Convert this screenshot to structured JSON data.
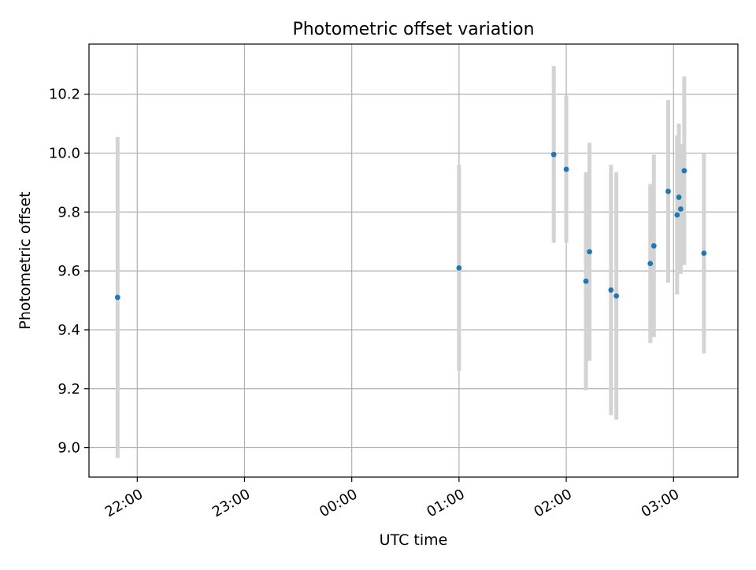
{
  "chart_data": {
    "type": "scatter",
    "title": "Photometric offset variation",
    "xlabel": "UTC time",
    "ylabel": "Photometric offset",
    "x_unit": "UTC time (HH:MM, across midnight)",
    "xlim": [
      "21:33",
      "03:36"
    ],
    "ylim": [
      8.9,
      10.37
    ],
    "x_ticks": [
      "22:00",
      "23:00",
      "00:00",
      "01:00",
      "02:00",
      "03:00"
    ],
    "y_ticks": [
      "9.0",
      "9.2",
      "9.4",
      "9.6",
      "9.8",
      "10.0",
      "10.2"
    ],
    "grid": true,
    "legend": "none",
    "colors": {
      "marker": "#1f77b4",
      "errorbar": "#d3d3d3",
      "grid": "#b0b0b0",
      "axes": "#000000"
    },
    "points": [
      {
        "x": "21:49",
        "y": 9.51,
        "err": 0.545
      },
      {
        "x": "01:00",
        "y": 9.61,
        "err": 0.35
      },
      {
        "x": "01:53",
        "y": 9.995,
        "err": 0.3
      },
      {
        "x": "02:00",
        "y": 9.945,
        "err": 0.25
      },
      {
        "x": "02:11",
        "y": 9.565,
        "err": 0.37
      },
      {
        "x": "02:13",
        "y": 9.665,
        "err": 0.37
      },
      {
        "x": "02:25",
        "y": 9.535,
        "err": 0.425
      },
      {
        "x": "02:28",
        "y": 9.515,
        "err": 0.42
      },
      {
        "x": "02:47",
        "y": 9.625,
        "err": 0.27
      },
      {
        "x": "02:49",
        "y": 9.685,
        "err": 0.31
      },
      {
        "x": "02:57",
        "y": 9.87,
        "err": 0.31
      },
      {
        "x": "03:02",
        "y": 9.79,
        "err": 0.27
      },
      {
        "x": "03:03",
        "y": 9.85,
        "err": 0.25
      },
      {
        "x": "03:04",
        "y": 9.81,
        "err": 0.22
      },
      {
        "x": "03:06",
        "y": 9.94,
        "err": 0.32
      },
      {
        "x": "03:17",
        "y": 9.66,
        "err": 0.34
      }
    ]
  }
}
